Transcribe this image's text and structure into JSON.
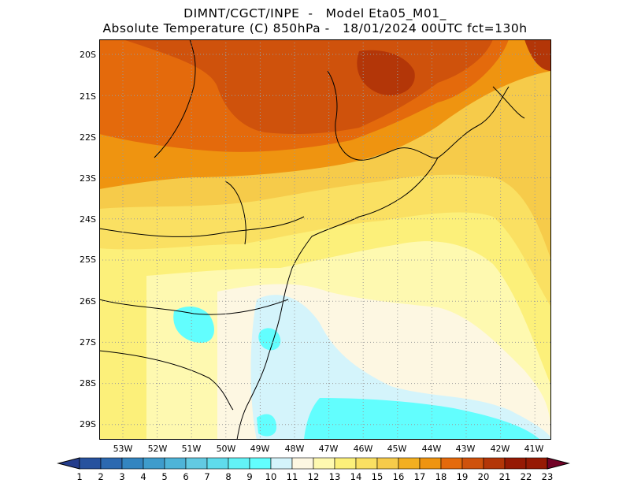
{
  "title": {
    "line1": "DIMNT/CGCT/INPE  -   Model Eta05_M01_",
    "line2": "Absolute Temperature (C) 850hPa -   18/01/2024 00UTC fct=130h"
  },
  "axes": {
    "lat_labels": [
      "20S",
      "21S",
      "22S",
      "23S",
      "24S",
      "25S",
      "26S",
      "27S",
      "28S",
      "29S"
    ],
    "lon_labels": [
      "53W",
      "52W",
      "51W",
      "50W",
      "49W",
      "48W",
      "47W",
      "46W",
      "45W",
      "44W",
      "43W",
      "42W",
      "41W"
    ]
  },
  "colorbar": {
    "labels": [
      "1",
      "2",
      "3",
      "4",
      "5",
      "6",
      "7",
      "8",
      "9",
      "10",
      "11",
      "12",
      "13",
      "14",
      "15",
      "16",
      "17",
      "18",
      "19",
      "20",
      "21",
      "22",
      "23"
    ],
    "colors": [
      "#243d8c",
      "#27529e",
      "#2c69b0",
      "#3385c0",
      "#3e9ccc",
      "#4eb4d8",
      "#62cae2",
      "#5fdcec",
      "#62f2f6",
      "#62fefe",
      "#d4f4fb",
      "#fdf7e2",
      "#fef9b0",
      "#fcf07a",
      "#fae062",
      "#f6cb4a",
      "#f3af20",
      "#ef9410",
      "#e46a0c",
      "#cf520c",
      "#b33608",
      "#961a04",
      "#720226"
    ]
  },
  "map_colors": {
    "t11": "#d4f4fb",
    "t12": "#fdf7e2",
    "t13": "#fef9b0",
    "t14": "#fcf07a",
    "t15": "#fae062",
    "t16": "#f6cb4a",
    "t17": "#f3af20",
    "t18": "#ef9410",
    "t19": "#e46a0c",
    "t20": "#cf520c",
    "t21": "#b33608",
    "cyan": "#62fefe"
  }
}
